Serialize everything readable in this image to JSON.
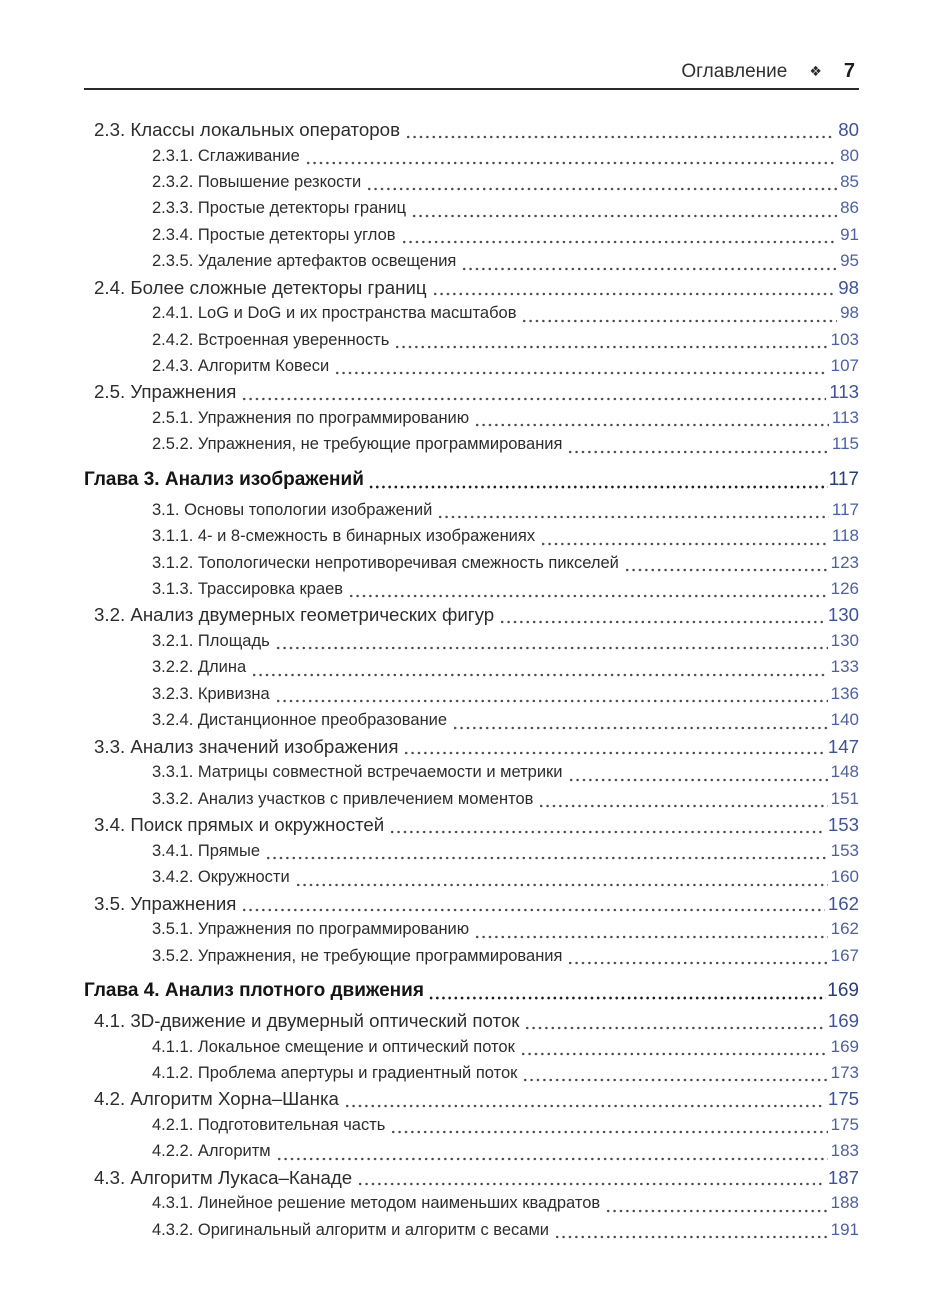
{
  "header": {
    "title": "Оглавление",
    "ornament": "❖",
    "page_number": "7"
  },
  "colors": {
    "chapter_page_number": "#2c3b7a",
    "section_page_number": "#3d52a2",
    "sub_page_number": "#4c60ac",
    "body_text": "#2d2d2d",
    "rule": "#2b2b2b"
  },
  "toc": {
    "entries": [
      {
        "level": "section",
        "label": "2.3. Классы локальных операторов",
        "page": "80"
      },
      {
        "level": "sub",
        "label": "2.3.1. Сглаживание",
        "page": "80"
      },
      {
        "level": "sub",
        "label": "2.3.2. Повышение резкости",
        "page": "85"
      },
      {
        "level": "sub",
        "label": "2.3.3. Простые детекторы границ",
        "page": "86"
      },
      {
        "level": "sub",
        "label": "2.3.4. Простые детекторы углов",
        "page": "91"
      },
      {
        "level": "sub",
        "label": "2.3.5. Удаление артефактов освещения",
        "page": "95"
      },
      {
        "level": "section",
        "label": "2.4. Более сложные детекторы границ",
        "page": "98"
      },
      {
        "level": "sub",
        "label": "2.4.1. LoG и DoG и их пространства масштабов",
        "page": "98"
      },
      {
        "level": "sub",
        "label": "2.4.2. Встроенная уверенность",
        "page": "103"
      },
      {
        "level": "sub",
        "label": "2.4.3. Алгоритм Ковеси",
        "page": "107"
      },
      {
        "level": "section",
        "label": "2.5. Упражнения",
        "page": "113"
      },
      {
        "level": "sub",
        "label": "2.5.1. Упражнения по программированию",
        "page": "113"
      },
      {
        "level": "sub",
        "label": "2.5.2. Упражнения, не требующие программирования",
        "page": "115"
      },
      {
        "level": "chapter",
        "label": "Глава 3. Анализ изображений",
        "page": "117"
      },
      {
        "level": "sub",
        "label": "3.1. Основы топологии изображений",
        "page": "117"
      },
      {
        "level": "sub",
        "label": "3.1.1. 4- и 8-смежность в бинарных изображениях",
        "page": "118"
      },
      {
        "level": "sub",
        "label": "3.1.2. Топологически непротиворечивая смежность пикселей",
        "page": "123"
      },
      {
        "level": "sub",
        "label": "3.1.3. Трассировка краев",
        "page": "126"
      },
      {
        "level": "section",
        "label": "3.2. Анализ двумерных геометрических фигур",
        "page": "130"
      },
      {
        "level": "sub",
        "label": "3.2.1. Площадь",
        "page": "130"
      },
      {
        "level": "sub",
        "label": "3.2.2. Длина",
        "page": "133"
      },
      {
        "level": "sub",
        "label": "3.2.3. Кривизна",
        "page": "136"
      },
      {
        "level": "sub",
        "label": "3.2.4. Дистанционное преобразование",
        "page": "140"
      },
      {
        "level": "section",
        "label": "3.3. Анализ значений изображения",
        "page": "147"
      },
      {
        "level": "sub",
        "label": "3.3.1. Матрицы совместной встречаемости и метрики",
        "page": "148"
      },
      {
        "level": "sub",
        "label": "3.3.2. Анализ участков с привлечением моментов",
        "page": "151"
      },
      {
        "level": "section",
        "label": "3.4. Поиск прямых и окружностей",
        "page": "153"
      },
      {
        "level": "sub",
        "label": "3.4.1. Прямые",
        "page": "153"
      },
      {
        "level": "sub",
        "label": "3.4.2. Окружности",
        "page": "160"
      },
      {
        "level": "section",
        "label": "3.5. Упражнения",
        "page": "162"
      },
      {
        "level": "sub",
        "label": "3.5.1. Упражнения по программированию",
        "page": "162"
      },
      {
        "level": "sub",
        "label": "3.5.2. Упражнения, не требующие программирования",
        "page": "167"
      },
      {
        "level": "chapter",
        "label": "Глава 4. Анализ плотного движения",
        "page": "169"
      },
      {
        "level": "section",
        "label": "4.1. 3D-движение и двумерный оптический поток",
        "page": "169"
      },
      {
        "level": "sub",
        "label": "4.1.1. Локальное смещение и оптический поток",
        "page": "169"
      },
      {
        "level": "sub",
        "label": "4.1.2. Проблема апертуры и градиентный поток",
        "page": "173"
      },
      {
        "level": "section",
        "label": "4.2. Алгоритм Хорна–Шанка",
        "page": "175"
      },
      {
        "level": "sub",
        "label": "4.2.1. Подготовительная часть",
        "page": "175"
      },
      {
        "level": "sub",
        "label": "4.2.2. Алгоритм",
        "page": "183"
      },
      {
        "level": "section",
        "label": "4.3. Алгоритм Лукаса–Канаде",
        "page": "187"
      },
      {
        "level": "sub",
        "label": "4.3.1. Линейное решение методом наименьших квадратов",
        "page": "188"
      },
      {
        "level": "sub",
        "label": "4.3.2. Оригинальный алгоритм и алгоритм с весами",
        "page": "191"
      }
    ]
  }
}
